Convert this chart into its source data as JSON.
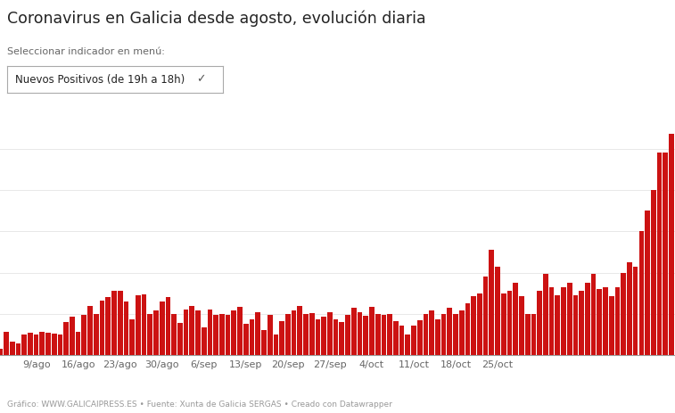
{
  "title": "Coronavirus en Galicia desde agosto, evolución diaria",
  "subtitle": "Seleccionar indicador en menú:",
  "dropdown_label": "Nuevos Positivos (de 19h a 18h)",
  "footer": "Gráfico: WWW.GALICAIPRESS.ES • Fuente: Xunta de Galicia SERGAS • Creado con Datawrapper",
  "bar_color": "#cc1212",
  "background_color": "#ffffff",
  "x_labels": [
    "9/ago",
    "16/ago",
    "23/ago",
    "30/ago",
    "6/sep",
    "13/sep",
    "20/sep",
    "27/sep",
    "4/oct",
    "11/oct",
    "18/oct",
    "25/oct"
  ],
  "ylim": [
    0,
    1200
  ],
  "yticks": [
    200,
    400,
    600,
    800,
    1000
  ],
  "values": [
    30,
    115,
    65,
    55,
    100,
    110,
    100,
    115,
    110,
    105,
    100,
    160,
    185,
    115,
    195,
    240,
    200,
    265,
    280,
    310,
    310,
    260,
    175,
    290,
    295,
    200,
    215,
    260,
    280,
    200,
    155,
    220,
    240,
    215,
    135,
    220,
    195,
    200,
    195,
    215,
    235,
    150,
    175,
    210,
    120,
    195,
    100,
    165,
    200,
    215,
    240,
    200,
    205,
    175,
    185,
    210,
    175,
    160,
    195,
    230,
    210,
    190,
    235,
    200,
    195,
    200,
    165,
    145,
    100,
    145,
    170,
    200,
    215,
    175,
    200,
    230,
    200,
    215,
    250,
    285,
    300,
    380,
    510,
    430,
    300,
    310,
    350,
    285,
    200,
    200,
    310,
    395,
    330,
    290,
    330,
    350,
    290,
    310,
    350,
    395,
    320,
    330,
    285,
    330,
    400,
    450,
    430,
    600,
    700,
    800,
    980,
    980,
    1070
  ]
}
